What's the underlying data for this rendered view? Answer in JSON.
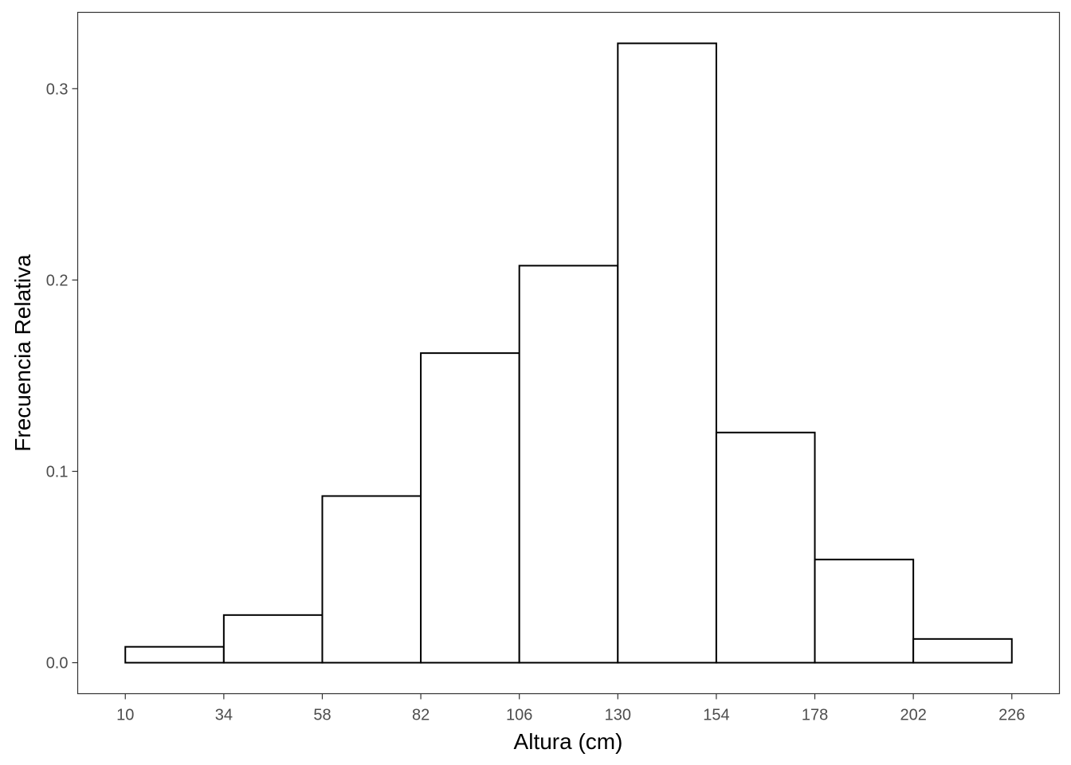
{
  "chart_data": {
    "type": "bar",
    "xlabel": "Altura (cm)",
    "ylabel": "Frecuencia Relativa",
    "bin_edges": [
      10,
      34,
      58,
      82,
      106,
      130,
      154,
      178,
      202,
      226
    ],
    "x_ticks": [
      "10",
      "34",
      "58",
      "82",
      "106",
      "130",
      "154",
      "178",
      "202",
      "226"
    ],
    "values": [
      0.0083,
      0.0249,
      0.0871,
      0.1618,
      0.2075,
      0.3237,
      0.1203,
      0.0539,
      0.0124
    ],
    "y_ticks": [
      "0.0",
      "0.1",
      "0.2",
      "0.3"
    ],
    "y_tick_values": [
      0.0,
      0.1,
      0.2,
      0.3
    ],
    "xlim": [
      -1.6,
      237.6
    ],
    "ylim": [
      -0.0162,
      0.3399
    ],
    "grid": false,
    "legend": "none"
  }
}
